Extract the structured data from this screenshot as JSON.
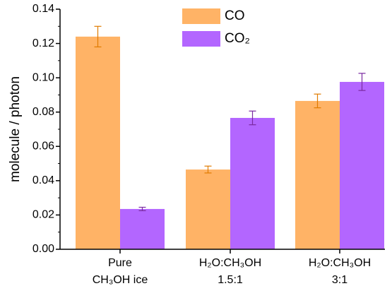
{
  "chart_data": {
    "type": "bar",
    "categories": [
      [
        "Pure",
        "CH₃OH ice"
      ],
      [
        "H₂O:CH₃OH",
        "1.5:1"
      ],
      [
        "H₂O:CH₃OH",
        "3:1"
      ]
    ],
    "y_label": "molecule / photon",
    "series": [
      {
        "name": "CO",
        "color": "#ffb366",
        "error_color": "#e07b00",
        "values": [
          0.124,
          0.0465,
          0.0865
        ],
        "errors": [
          0.006,
          0.002,
          0.004
        ]
      },
      {
        "name": "CO₂",
        "color": "#b366ff",
        "error_color": "#7a2aa0",
        "values": [
          0.0235,
          0.0766,
          0.0976
        ],
        "errors": [
          0.001,
          0.004,
          0.005
        ]
      }
    ],
    "ylim": [
      0,
      0.14
    ],
    "yticks": [
      {
        "value": 0,
        "label": "0.00"
      },
      {
        "value": 0.02,
        "label": "0.02"
      },
      {
        "value": 0.04,
        "label": "0.04"
      },
      {
        "value": 0.06,
        "label": "0.06"
      },
      {
        "value": 0.08,
        "label": "0.08"
      },
      {
        "value": 0.1,
        "label": "0.10"
      },
      {
        "value": 0.12,
        "label": "0.12"
      },
      {
        "value": 0.14,
        "label": "0.14"
      }
    ]
  }
}
